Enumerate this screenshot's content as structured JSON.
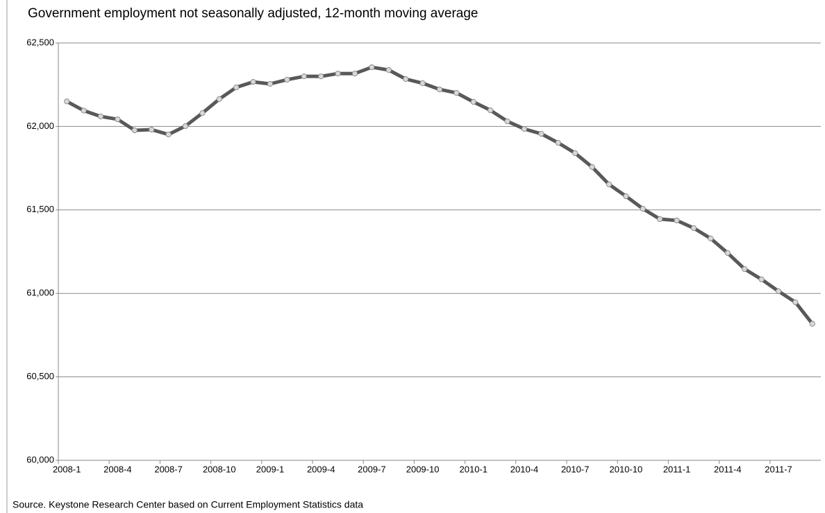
{
  "chart_data": {
    "type": "line",
    "title": "Government employment not seasonally adjusted, 12-month moving average",
    "source": "Source. Keystone Research Center based on Current Employment Statistics data",
    "categories": [
      "2008-1",
      null,
      null,
      "2008-4",
      null,
      null,
      "2008-7",
      null,
      null,
      "2008-10",
      null,
      null,
      "2009-1",
      null,
      null,
      "2009-4",
      null,
      null,
      "2009-7",
      null,
      null,
      "2009-10",
      null,
      null,
      "2010-1",
      null,
      null,
      "2010-4",
      null,
      null,
      "2010-7",
      null,
      null,
      "2010-10",
      null,
      null,
      "2011-1",
      null,
      null,
      "2011-4",
      null,
      null,
      "2011-7",
      null,
      null
    ],
    "series": [
      {
        "name": "Government employment",
        "color": "#595959",
        "values": [
          62150,
          62095,
          62060,
          62043,
          61977,
          61981,
          61952,
          62002,
          62080,
          62164,
          62234,
          62267,
          62255,
          62280,
          62300,
          62300,
          62317,
          62317,
          62355,
          62338,
          62284,
          62259,
          62222,
          62201,
          62147,
          62097,
          62031,
          61985,
          61956,
          61902,
          61840,
          61757,
          61653,
          61582,
          61507,
          61445,
          61437,
          61391,
          61329,
          61242,
          61146,
          61084,
          61013,
          60947,
          60818
        ]
      }
    ],
    "ylim": [
      60000,
      62500
    ],
    "yticks": [
      {
        "value": 60000,
        "label": "60,000"
      },
      {
        "value": 60500,
        "label": "60,500"
      },
      {
        "value": 61000,
        "label": "61,000"
      },
      {
        "value": 61500,
        "label": "61,500"
      },
      {
        "value": 62000,
        "label": "62,000"
      },
      {
        "value": 62500,
        "label": "62,500"
      }
    ],
    "grid": true
  }
}
